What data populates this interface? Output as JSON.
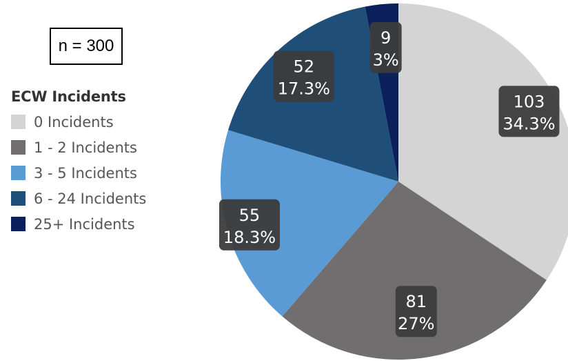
{
  "n_label": "n = 300",
  "chart_data": {
    "type": "pie",
    "legend_title": "ECW Incidents",
    "legend_position": "left",
    "categories": [
      "0 Incidents",
      "1 - 2 Incidents",
      "3 - 5 Incidents",
      "6 - 24 Incidents",
      "25+ Incidents"
    ],
    "values": [
      103,
      81,
      55,
      52,
      9
    ],
    "percent_labels": [
      "34.3%",
      "27%",
      "18.3%",
      "17.3%",
      "3%"
    ],
    "colors": [
      "#d4d4d4",
      "#706e6f",
      "#5b9bd5",
      "#1f4e79",
      "#0a1f5c"
    ]
  }
}
